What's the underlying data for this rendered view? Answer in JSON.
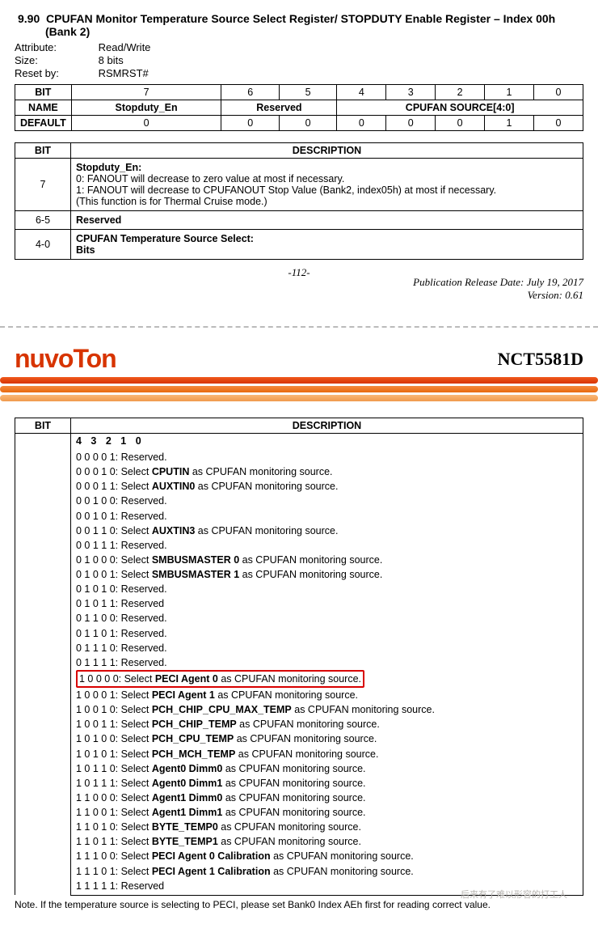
{
  "section": {
    "number": "9.90",
    "title": "CPUFAN Monitor Temperature Source Select Register/ STOPDUTY Enable Register – Index 00h (Bank 2)"
  },
  "attrs": {
    "attribute_label": "Attribute:",
    "attribute_value": "Read/Write",
    "size_label": "Size:",
    "size_value": "8 bits",
    "reset_label": "Reset by:",
    "reset_value": "RSMRST#"
  },
  "bit_table": {
    "headers": {
      "bit": "BIT",
      "name": "NAME",
      "default": "DEFAULT"
    },
    "bits": [
      "7",
      "6",
      "5",
      "4",
      "3",
      "2",
      "1",
      "0"
    ],
    "name_row": {
      "b7": "Stopduty_En",
      "b65": "Reserved",
      "b40": "CPUFAN SOURCE[4:0]"
    },
    "defaults": [
      "0",
      "0",
      "0",
      "0",
      "0",
      "0",
      "1",
      "0"
    ]
  },
  "desc_table1": {
    "headers": {
      "bit": "BIT",
      "desc": "DESCRIPTION"
    },
    "rows": [
      {
        "bit": "7",
        "title": "Stopduty_En:",
        "l1": "0: FANOUT will decrease to zero value at most if necessary.",
        "l2": "1: FANOUT will decrease to CPUFANOUT Stop Value (Bank2, index05h) at most if necessary.",
        "l3": "(This function is for Thermal Cruise mode.)"
      },
      {
        "bit": "6-5",
        "title": "Reserved"
      },
      {
        "bit": "4-0",
        "title": "CPUFAN Temperature Source Select:",
        "l1": "Bits"
      }
    ]
  },
  "publication": {
    "release": "Publication Release Date: July 19, 2017",
    "version": "Version: 0.61",
    "pagenum": "-112-"
  },
  "brand": {
    "name": "nuvoTon",
    "part": "NCT5581D"
  },
  "desc_table2": {
    "headers": {
      "bit": "BIT",
      "desc": "DESCRIPTION"
    },
    "bits_header": "4 3 2 1 0",
    "rows": [
      {
        "bits": "0 0 0 0 1:",
        "text": " Reserved."
      },
      {
        "bits": "0 0 0 1 0:",
        "pre": " Select ",
        "bold": "CPUTIN",
        "post": " as CPUFAN monitoring source."
      },
      {
        "bits": "0 0 0 1 1:",
        "pre": " Select ",
        "bold": "AUXTIN0",
        "post": " as CPUFAN monitoring source."
      },
      {
        "bits": "0 0 1 0 0:",
        "text": " Reserved."
      },
      {
        "bits": "0 0 1 0 1:",
        "text": " Reserved."
      },
      {
        "bits": "0 0 1 1 0:",
        "pre": " Select ",
        "bold": "AUXTIN3",
        "post": " as CPUFAN monitoring source."
      },
      {
        "bits": "0 0 1 1 1:",
        "text": " Reserved."
      },
      {
        "bits": "0 1 0 0 0:",
        "pre": " Select ",
        "bold": "SMBUSMASTER 0",
        "post": " as CPUFAN monitoring source."
      },
      {
        "bits": "0 1 0 0 1:",
        "pre": " Select ",
        "bold": "SMBUSMASTER 1",
        "post": " as CPUFAN monitoring source."
      },
      {
        "bits": "0 1 0 1 0:",
        "text": " Reserved."
      },
      {
        "bits": "0 1 0 1 1:",
        "text": " Reserved"
      },
      {
        "bits": "0 1 1 0 0:",
        "text": " Reserved."
      },
      {
        "bits": "0 1 1 0 1:",
        "text": " Reserved."
      },
      {
        "bits": "0 1 1 1 0:",
        "text": " Reserved."
      },
      {
        "bits": "0 1 1 1 1:",
        "text": " Reserved."
      },
      {
        "bits": "1 0 0 0 0:",
        "pre": " Select ",
        "bold": "PECI Agent 0",
        "post": " as CPUFAN monitoring source.",
        "highlight": true
      },
      {
        "bits": "1 0 0 0 1:",
        "pre": " Select ",
        "bold": "PECI Agent 1",
        "post": " as CPUFAN monitoring source."
      },
      {
        "bits": "1 0 0 1 0:",
        "pre": " Select ",
        "bold": "PCH_CHIP_CPU_MAX_TEMP",
        "post": " as CPUFAN monitoring source."
      },
      {
        "bits": "1 0 0 1 1:",
        "pre": " Select ",
        "bold": "PCH_CHIP_TEMP",
        "post": " as CPUFAN monitoring source."
      },
      {
        "bits": "1 0 1 0 0:",
        "pre": " Select ",
        "bold": "PCH_CPU_TEMP",
        "post": " as CPUFAN monitoring source."
      },
      {
        "bits": "1 0 1 0 1:",
        "pre": " Select ",
        "bold": "PCH_MCH_TEMP",
        "post": " as CPUFAN monitoring source."
      },
      {
        "bits": "1 0 1 1 0:",
        "pre": " Select ",
        "bold": "Agent0 Dimm0",
        "post": " as CPUFAN monitoring source."
      },
      {
        "bits": "1 0 1 1 1:",
        "pre": " Select ",
        "bold": "Agent0 Dimm1",
        "post": " as CPUFAN monitoring source."
      },
      {
        "bits": "1 1 0 0 0:",
        "pre": " Select ",
        "bold": "Agent1 Dimm0",
        "post": " as CPUFAN monitoring source."
      },
      {
        "bits": "1 1 0 0 1:",
        "pre": " Select ",
        "bold": "Agent1 Dimm1",
        "post": " as CPUFAN monitoring source."
      },
      {
        "bits": "1 1 0 1 0:",
        "pre": " Select ",
        "bold": "BYTE_TEMP0",
        "post": " as CPUFAN monitoring source."
      },
      {
        "bits": "1 1 0 1 1:",
        "pre": " Select ",
        "bold": "BYTE_TEMP1",
        "post": " as CPUFAN monitoring source."
      },
      {
        "bits": "1 1 1 0 0:",
        "pre": " Select ",
        "bold": "PECI Agent 0 Calibration",
        "post": " as CPUFAN monitoring source."
      },
      {
        "bits": "1 1 1 0 1:",
        "pre": " Select ",
        "bold": "PECI Agent 1 Calibration",
        "post": " as CPUFAN monitoring source."
      },
      {
        "bits": "1 1 1 1 1:",
        "text": " Reserved"
      }
    ]
  },
  "note": "Note. If the temperature source is selecting to PECI, please set Bank0 Index AEh first for reading correct value.",
  "watermark": "后来有了难以形容的打工人"
}
